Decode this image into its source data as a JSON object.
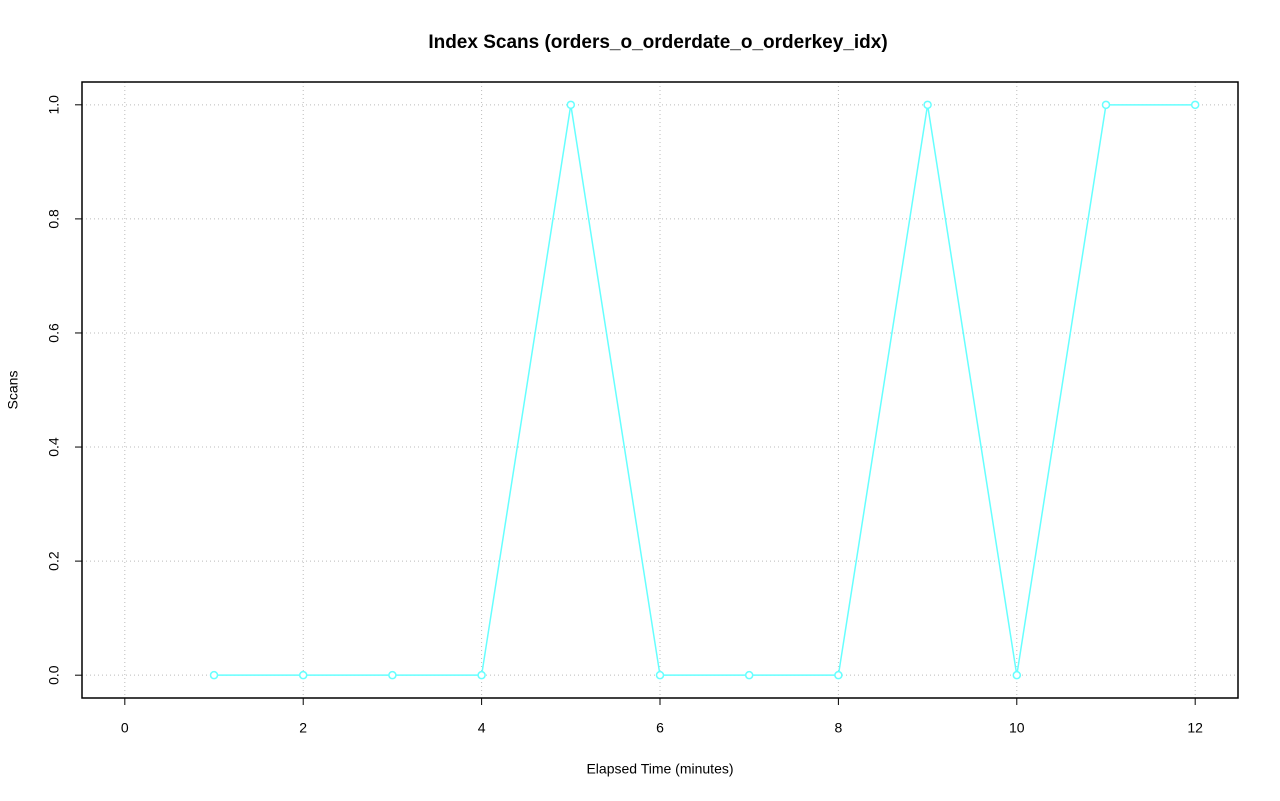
{
  "chart_data": {
    "type": "line",
    "title": "Index Scans (orders_o_orderdate_o_orderkey_idx)",
    "x_label": "Elapsed Time (minutes)",
    "y_label": "Scans",
    "x": [
      1,
      2,
      3,
      4,
      5,
      6,
      7,
      8,
      9,
      10,
      11,
      12
    ],
    "series": [
      {
        "name": "Scans",
        "color": "#66ffff",
        "values": [
          0,
          0,
          0,
          0,
          1,
          0,
          0,
          0,
          1,
          0,
          1,
          1
        ]
      }
    ],
    "xlim": [
      -0.48,
      12.48
    ],
    "xticks": [
      0,
      2,
      4,
      6,
      8,
      10,
      12
    ],
    "ylim": [
      -0.04,
      1.04
    ],
    "yticks": [
      {
        "value": 0,
        "label": "0.0"
      },
      0.2,
      0.4,
      0.6,
      0.8,
      {
        "value": 1,
        "label": "1.0"
      }
    ],
    "grid": true
  }
}
